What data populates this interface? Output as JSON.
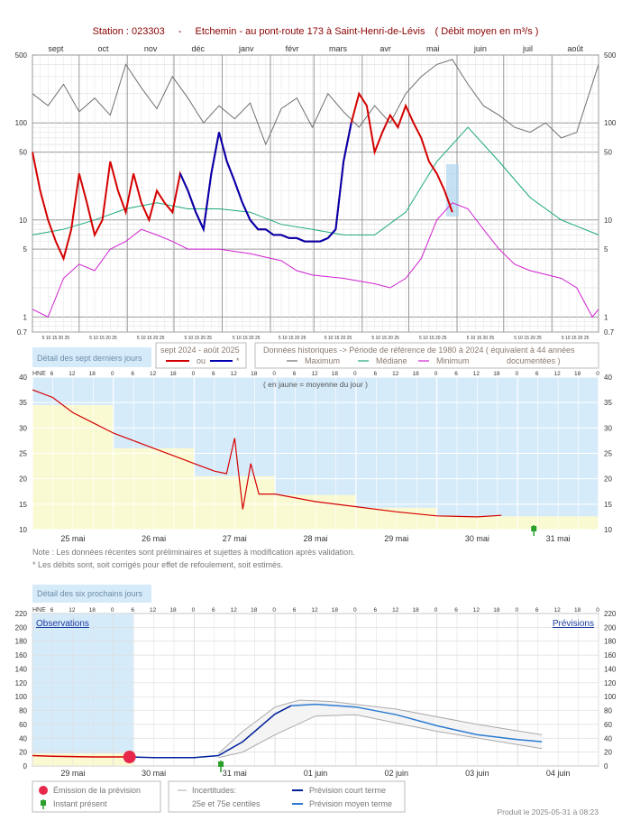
{
  "header": {
    "station_label": "Station : 023303",
    "separator": "-",
    "station_name": "Etchemin - au pont-route 173 à Saint-Henri-de-Lévis",
    "unit_note": "( Débit moyen en m³/s )",
    "title_color": "#8b0000"
  },
  "colors": {
    "current": "#d40000",
    "current_alt": "#0000b0",
    "maximum": "#707070",
    "median": "#1aa87a",
    "minimum": "#d020d0",
    "forecast_short": "#00209a",
    "forecast_medium": "#2a7ad0",
    "highlight_blue": "#d6ebfa",
    "highlight_yellow": "#fafad2"
  },
  "annual": {
    "months": [
      "sept",
      "oct",
      "nov",
      "déc",
      "janv",
      "févr",
      "mars",
      "avr",
      "mai",
      "juin",
      "juil",
      "août"
    ],
    "y_ticks": [
      "500",
      "100",
      "50",
      "10",
      "5",
      "1",
      "0.7"
    ],
    "day_ticks_label": "5 10 15 20 25",
    "y_range": [
      0.7,
      500
    ],
    "log_scale": true
  },
  "legend": {
    "detail7_label": "Détail des sept derniers jours",
    "period_title": "sept 2024 - août 2025",
    "or_label": "ou",
    "star_label": "*",
    "hist_title": "Données historiques -> Période de référence  de 1980 à 2024  ( équivalent à 44 années",
    "maximum": "Maximum",
    "median": "Médiane",
    "minimum": "Minimum",
    "documented": "documentées )"
  },
  "seven_day": {
    "hne_label": "HNE",
    "hour_ticks": [
      "6",
      "12",
      "18",
      "0"
    ],
    "y_ticks": [
      "40",
      "35",
      "30",
      "25",
      "20",
      "15",
      "10"
    ],
    "y_range": [
      10,
      40
    ],
    "days": [
      "25 mai",
      "26 mai",
      "27 mai",
      "28 mai",
      "29 mai",
      "30 mai",
      "31 mai"
    ],
    "yellow_note": "( en jaune = moyenne du jour )",
    "daily_means": [
      34.5,
      26.0,
      20.5,
      16.8,
      14.3,
      12.6,
      12.6
    ]
  },
  "notes": {
    "note1": "Note : Les données récentes sont préliminaires et sujettes à modification après validation.",
    "note2": "* Les débits sont, soit corrigés pour effet de refoulement, soit estimés."
  },
  "six_day": {
    "label": "Détail des six prochains jours",
    "hne_label": "HNE",
    "y_ticks": [
      "220",
      "200",
      "180",
      "160",
      "140",
      "120",
      "100",
      "80",
      "60",
      "40",
      "20",
      "0"
    ],
    "y_range": [
      0,
      220
    ],
    "days": [
      "29 mai",
      "30 mai",
      "31 mai",
      "01 juin",
      "02 juin",
      "03 juin",
      "04 juin"
    ],
    "observations_label": "Observations",
    "forecast_label": "Prévisions"
  },
  "bottom_legend": {
    "emission": "Émission de la prévision",
    "present": "Instant présent",
    "uncertainties": "Incertitudes:",
    "centiles": "25e et 75e centiles",
    "short_term": "Prévision court terme",
    "medium_term": "Prévision moyen terme"
  },
  "footer": {
    "produced": "Produit le 2025-05-31 à 08:23"
  },
  "chart_data": [
    {
      "type": "line",
      "title": "Etchemin - au pont-route 173 à Saint-Henri-de-Lévis ( Débit moyen en m³/s )",
      "x_categories": [
        "sept",
        "oct",
        "nov",
        "déc",
        "janv",
        "févr",
        "mars",
        "avr",
        "mai",
        "juin",
        "juil",
        "août"
      ],
      "ylim": [
        0.7,
        500
      ],
      "log_y": true,
      "series": [
        {
          "name": "Maximum",
          "x": [
            0,
            10,
            20,
            30,
            40,
            50,
            60,
            70,
            80,
            90,
            100,
            110,
            120,
            130,
            140,
            150,
            160,
            170,
            180,
            190,
            200,
            210,
            220,
            230,
            240,
            250,
            260,
            270,
            280,
            290,
            300,
            310,
            320,
            330,
            340,
            350,
            364
          ],
          "values": [
            200,
            150,
            250,
            130,
            180,
            120,
            400,
            230,
            140,
            300,
            180,
            100,
            150,
            110,
            160,
            60,
            140,
            180,
            90,
            200,
            130,
            90,
            150,
            100,
            200,
            300,
            400,
            450,
            250,
            150,
            120,
            90,
            80,
            100,
            70,
            80,
            400
          ]
        },
        {
          "name": "Médiane",
          "x": [
            0,
            20,
            40,
            60,
            80,
            100,
            120,
            140,
            160,
            180,
            200,
            220,
            240,
            260,
            280,
            300,
            320,
            340,
            364
          ],
          "values": [
            7,
            8,
            10,
            13,
            15,
            13,
            13,
            12,
            9,
            8,
            7,
            7,
            12,
            40,
            90,
            40,
            17,
            10,
            7
          ]
        },
        {
          "name": "Minimum",
          "x": [
            0,
            10,
            20,
            30,
            40,
            50,
            60,
            70,
            80,
            90,
            100,
            120,
            140,
            160,
            170,
            180,
            200,
            220,
            230,
            240,
            250,
            260,
            270,
            280,
            290,
            300,
            310,
            320,
            340,
            350,
            360,
            364
          ],
          "values": [
            1.2,
            1,
            2.5,
            3.5,
            3,
            5,
            6,
            8,
            7,
            6,
            5,
            5,
            4.5,
            3.8,
            3,
            2.7,
            2.5,
            2.2,
            2,
            2.5,
            4,
            10,
            15,
            13,
            8,
            5,
            3.5,
            3,
            2.5,
            2,
            1,
            1.2
          ]
        },
        {
          "name": "sept 2024 - août 2025",
          "x": [
            0,
            5,
            10,
            15,
            20,
            25,
            30,
            35,
            40,
            45,
            50,
            55,
            60,
            65,
            70,
            75,
            80,
            85,
            90,
            95,
            100,
            105,
            110,
            115,
            120,
            125,
            130,
            135,
            140,
            145,
            150,
            155,
            160,
            165,
            170,
            175,
            180,
            185,
            190,
            195,
            200,
            205,
            210,
            215,
            220,
            225,
            230,
            235,
            240,
            245,
            250,
            255,
            260,
            265,
            270
          ],
          "values": [
            50,
            20,
            10,
            6,
            4,
            8,
            30,
            15,
            7,
            10,
            40,
            20,
            12,
            30,
            15,
            10,
            20,
            15,
            12,
            30,
            20,
            12,
            8,
            30,
            80,
            40,
            25,
            15,
            10,
            8,
            8,
            7,
            7,
            6.5,
            6.5,
            6,
            6,
            6,
            6.5,
            8,
            40,
            100,
            200,
            150,
            50,
            80,
            120,
            90,
            150,
            100,
            70,
            40,
            30,
            20,
            12
          ]
        }
      ]
    },
    {
      "type": "line",
      "title": "Détail des sept derniers jours",
      "categories": [
        "25 mai",
        "26 mai",
        "27 mai",
        "28 mai",
        "29 mai",
        "30 mai",
        "31 mai"
      ],
      "ylim": [
        10,
        40
      ],
      "series": [
        {
          "name": "Débit",
          "x": [
            0,
            0.25,
            0.5,
            0.75,
            1,
            1.25,
            1.5,
            1.75,
            2,
            2.25,
            2.4,
            2.5,
            2.6,
            2.7,
            2.8,
            3,
            3.5,
            4,
            4.5,
            5,
            5.5,
            5.8
          ],
          "values": [
            37.5,
            36,
            33,
            31,
            29,
            27.5,
            26,
            24.5,
            23,
            21.5,
            21,
            28,
            14,
            23,
            17,
            17,
            15.5,
            14.5,
            13.5,
            12.7,
            12.5,
            12.8
          ]
        },
        {
          "name": "moyenne du jour",
          "x": [
            0,
            1,
            2,
            3,
            4,
            5,
            6
          ],
          "values": [
            34.5,
            26.0,
            20.5,
            16.8,
            14.3,
            12.6,
            12.6
          ]
        }
      ]
    },
    {
      "type": "line",
      "title": "Détail des six prochains jours",
      "categories": [
        "29 mai",
        "30 mai",
        "31 mai",
        "01 juin",
        "02 juin",
        "03 juin",
        "04 juin"
      ],
      "ylim": [
        0,
        220
      ],
      "series": [
        {
          "name": "Observations",
          "x": [
            0,
            0.25,
            0.5,
            0.75,
            1,
            1.2
          ],
          "values": [
            15,
            14,
            13.5,
            13,
            13,
            13
          ]
        },
        {
          "name": "Prévision court terme",
          "x": [
            1.2,
            1.5,
            2,
            2.3,
            2.6,
            3,
            3.2,
            3.5,
            4,
            4.5,
            5,
            5.5,
            6,
            6.3
          ],
          "values": [
            13,
            12,
            12,
            15,
            35,
            75,
            87,
            89,
            85,
            74,
            58,
            45,
            38,
            35
          ]
        },
        {
          "name": "25e centile",
          "x": [
            2.3,
            2.6,
            3,
            3.5,
            4,
            5,
            6.3
          ],
          "values": [
            12,
            20,
            45,
            72,
            74,
            50,
            25
          ]
        },
        {
          "name": "75e centile",
          "x": [
            2.3,
            2.6,
            3,
            3.3,
            3.7,
            4.5,
            5.5,
            6.3
          ],
          "values": [
            18,
            50,
            85,
            95,
            93,
            82,
            60,
            45
          ]
        }
      ]
    }
  ]
}
